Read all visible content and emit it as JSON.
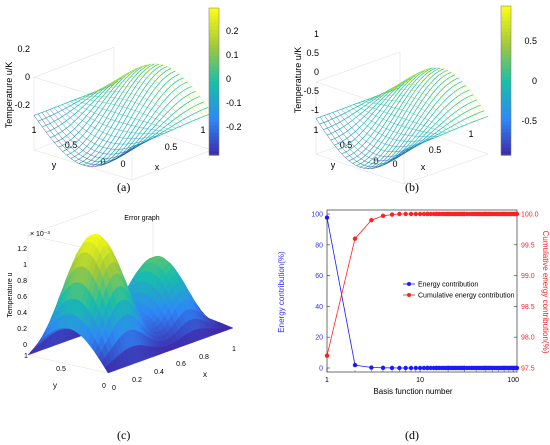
{
  "captions": [
    "(a)",
    "(b)",
    "(c)",
    "(d)"
  ],
  "panel_a": {
    "zlabel": "Temperature u/K",
    "xlabel": "x",
    "ylabel": "y",
    "zticks": [
      "0.2",
      "0",
      "-0.2"
    ],
    "xticks": [
      "0",
      "0.5",
      "1"
    ],
    "yticks": [
      "0",
      "0.5",
      "1"
    ],
    "colorbar_ticks": [
      "0.2",
      "0.1",
      "0",
      "-0.1",
      "-0.2"
    ],
    "colorbar_range": [
      -0.25,
      0.27
    ]
  },
  "panel_b": {
    "zlabel": "Temperature u/K",
    "xlabel": "x",
    "ylabel": "y",
    "zticks": [
      "1",
      "0.5",
      "0",
      "-0.5",
      "-1"
    ],
    "xticks": [
      "0",
      "0.5",
      "1"
    ],
    "yticks": [
      "0",
      "0.5",
      "1"
    ],
    "colorbar_ticks": [
      "0.5",
      "0",
      "-0.5"
    ],
    "colorbar_range": [
      -0.95,
      0.95
    ]
  },
  "panel_c": {
    "title": "Error graph",
    "zlabel": "Temperature u",
    "exponent": "× 10⁻³",
    "xlabel": "x",
    "ylabel": "y",
    "zticks": [
      "1.2",
      "1",
      "0.8",
      "0.6",
      "0.4",
      "0.2",
      "0"
    ],
    "xticks": [
      "0",
      "0.2",
      "0.4",
      "0.6",
      "0.8",
      "1"
    ],
    "yticks": [
      "0",
      "0.5",
      "1"
    ]
  },
  "chart_data": {
    "type": "line",
    "xscale": "log",
    "xlabel": "Basis function number",
    "ylabel_left": "Energy contribution(%)",
    "ylabel_right": "Cumulative energy contribution(%)",
    "x_ticks": [
      "1",
      "10",
      "100"
    ],
    "yleft_ticks": [
      "0",
      "20",
      "40",
      "60",
      "80",
      "100"
    ],
    "yright_ticks": [
      "97.5",
      "98.0",
      "98.5",
      "99.0",
      "99.5",
      "100.0"
    ],
    "yleft_lim": [
      0,
      100
    ],
    "yright_lim": [
      97.5,
      100.0
    ],
    "legend_position": "center-right",
    "series": [
      {
        "name": "Energy contribution",
        "axis": "left",
        "color": "#1a1aff",
        "x": [
          1,
          2,
          3,
          4,
          5,
          6,
          7,
          8,
          9,
          10,
          12,
          15,
          20,
          30,
          50,
          80,
          110
        ],
        "y": [
          97.7,
          1.9,
          0.3,
          0.1,
          0.05,
          0,
          0,
          0,
          0,
          0,
          0,
          0,
          0,
          0,
          0,
          0,
          0
        ]
      },
      {
        "name": "Cumulative energy contribution",
        "axis": "right",
        "color": "#ff2020",
        "x": [
          1,
          2,
          3,
          4,
          5,
          6,
          7,
          8,
          9,
          10,
          12,
          15,
          20,
          30,
          50,
          80,
          110
        ],
        "y": [
          97.7,
          99.6,
          99.9,
          99.97,
          99.99,
          100,
          100,
          100,
          100,
          100,
          100,
          100,
          100,
          100,
          100,
          100,
          100
        ]
      }
    ]
  }
}
